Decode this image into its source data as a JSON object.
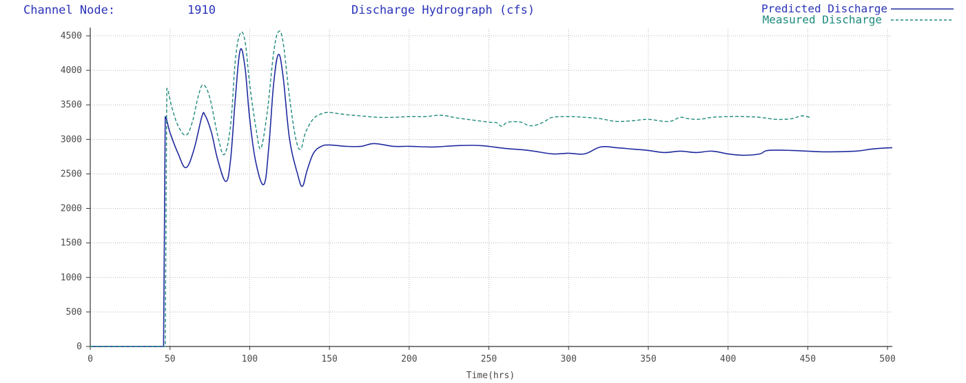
{
  "header": {
    "node_label": "Channel Node:",
    "node_value": "1910",
    "title": "Discharge Hydrograph (cfs)"
  },
  "legend": [
    {
      "name": "Predicted Discharge",
      "line": "solid",
      "color": "#1f2a9e"
    },
    {
      "name": "Measured Discharge",
      "line": "dashed",
      "color": "#1d8a7c"
    }
  ],
  "chart_data": {
    "type": "line",
    "title": "Discharge Hydrograph (cfs)",
    "xlabel": "Time(hrs)",
    "ylabel": "",
    "xlim": [
      0,
      503
    ],
    "ylim": [
      0,
      4600
    ],
    "xticks": [
      0,
      50,
      100,
      150,
      200,
      250,
      300,
      350,
      400,
      450,
      500
    ],
    "yticks": [
      0,
      500,
      1000,
      1500,
      2000,
      2500,
      3000,
      3500,
      4000,
      4500
    ],
    "grid": true,
    "legend_position": "top-right",
    "series": [
      {
        "name": "Predicted Discharge",
        "style": "solid",
        "color": "#1f2a9e",
        "points": [
          [
            0,
            0
          ],
          [
            46,
            0
          ],
          [
            47,
            3330
          ],
          [
            50,
            3100
          ],
          [
            55,
            2800
          ],
          [
            60,
            2590
          ],
          [
            65,
            2850
          ],
          [
            70,
            3330
          ],
          [
            72,
            3350
          ],
          [
            76,
            3100
          ],
          [
            80,
            2700
          ],
          [
            85,
            2390
          ],
          [
            88,
            2700
          ],
          [
            91,
            3600
          ],
          [
            94,
            4290
          ],
          [
            97,
            4050
          ],
          [
            100,
            3300
          ],
          [
            104,
            2650
          ],
          [
            109,
            2350
          ],
          [
            112,
            2900
          ],
          [
            115,
            3800
          ],
          [
            118,
            4230
          ],
          [
            121,
            3900
          ],
          [
            125,
            3000
          ],
          [
            130,
            2500
          ],
          [
            133,
            2320
          ],
          [
            136,
            2550
          ],
          [
            140,
            2800
          ],
          [
            145,
            2900
          ],
          [
            150,
            2920
          ],
          [
            160,
            2900
          ],
          [
            170,
            2900
          ],
          [
            178,
            2940
          ],
          [
            190,
            2900
          ],
          [
            200,
            2900
          ],
          [
            215,
            2890
          ],
          [
            230,
            2910
          ],
          [
            245,
            2910
          ],
          [
            260,
            2870
          ],
          [
            275,
            2840
          ],
          [
            290,
            2790
          ],
          [
            300,
            2800
          ],
          [
            310,
            2790
          ],
          [
            320,
            2890
          ],
          [
            330,
            2880
          ],
          [
            340,
            2860
          ],
          [
            350,
            2840
          ],
          [
            360,
            2810
          ],
          [
            370,
            2830
          ],
          [
            380,
            2810
          ],
          [
            390,
            2830
          ],
          [
            400,
            2790
          ],
          [
            410,
            2770
          ],
          [
            420,
            2790
          ],
          [
            425,
            2840
          ],
          [
            440,
            2840
          ],
          [
            460,
            2820
          ],
          [
            480,
            2830
          ],
          [
            490,
            2860
          ],
          [
            503,
            2880
          ]
        ]
      },
      {
        "name": "Measured Discharge",
        "style": "dashed",
        "color": "#1d8a7c",
        "points": [
          [
            0,
            0
          ],
          [
            47,
            0
          ],
          [
            48,
            3740
          ],
          [
            51,
            3480
          ],
          [
            55,
            3200
          ],
          [
            60,
            3060
          ],
          [
            64,
            3250
          ],
          [
            68,
            3650
          ],
          [
            71,
            3790
          ],
          [
            75,
            3600
          ],
          [
            80,
            3050
          ],
          [
            84,
            2780
          ],
          [
            88,
            3200
          ],
          [
            91,
            4150
          ],
          [
            94,
            4530
          ],
          [
            97,
            4430
          ],
          [
            100,
            3800
          ],
          [
            104,
            3150
          ],
          [
            107,
            2870
          ],
          [
            111,
            3400
          ],
          [
            115,
            4250
          ],
          [
            118,
            4560
          ],
          [
            121,
            4400
          ],
          [
            125,
            3600
          ],
          [
            129,
            3000
          ],
          [
            132,
            2860
          ],
          [
            135,
            3100
          ],
          [
            140,
            3300
          ],
          [
            145,
            3370
          ],
          [
            150,
            3390
          ],
          [
            160,
            3360
          ],
          [
            170,
            3340
          ],
          [
            180,
            3320
          ],
          [
            190,
            3320
          ],
          [
            200,
            3330
          ],
          [
            210,
            3330
          ],
          [
            220,
            3350
          ],
          [
            230,
            3310
          ],
          [
            240,
            3280
          ],
          [
            250,
            3250
          ],
          [
            255,
            3240
          ],
          [
            258,
            3190
          ],
          [
            262,
            3250
          ],
          [
            270,
            3250
          ],
          [
            275,
            3200
          ],
          [
            280,
            3210
          ],
          [
            285,
            3260
          ],
          [
            290,
            3320
          ],
          [
            300,
            3330
          ],
          [
            310,
            3320
          ],
          [
            320,
            3300
          ],
          [
            330,
            3260
          ],
          [
            340,
            3270
          ],
          [
            350,
            3290
          ],
          [
            360,
            3260
          ],
          [
            365,
            3270
          ],
          [
            370,
            3320
          ],
          [
            375,
            3300
          ],
          [
            380,
            3290
          ],
          [
            385,
            3300
          ],
          [
            390,
            3320
          ],
          [
            400,
            3330
          ],
          [
            410,
            3330
          ],
          [
            420,
            3320
          ],
          [
            430,
            3290
          ],
          [
            440,
            3300
          ],
          [
            446,
            3340
          ],
          [
            452,
            3320
          ]
        ]
      }
    ]
  }
}
